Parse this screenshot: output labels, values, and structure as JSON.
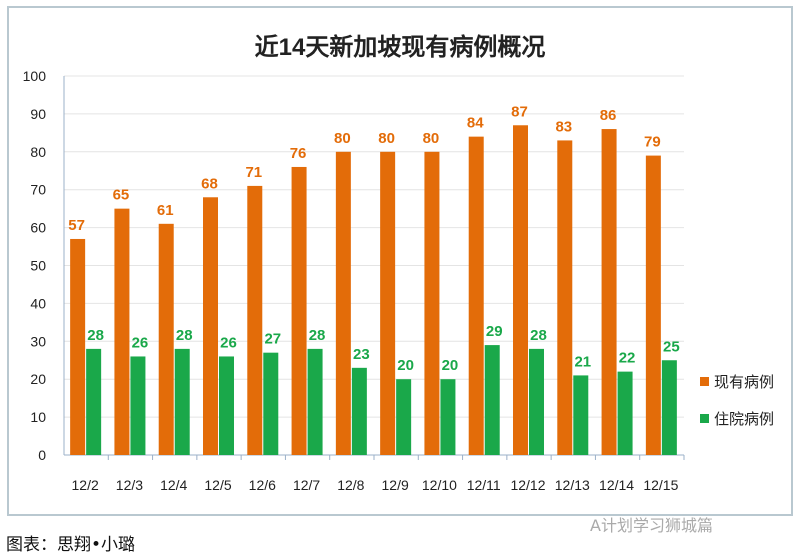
{
  "chart_data": {
    "type": "bar",
    "title": "近14天新加坡现有病例概况",
    "categories": [
      "12/2",
      "12/3",
      "12/4",
      "12/5",
      "12/6",
      "12/7",
      "12/8",
      "12/9",
      "12/10",
      "12/11",
      "12/12",
      "12/13",
      "12/14",
      "12/15"
    ],
    "series": [
      {
        "name": "现有病例",
        "color": "#e36c09",
        "values": [
          57,
          65,
          61,
          68,
          71,
          76,
          80,
          80,
          80,
          84,
          87,
          83,
          86,
          79
        ]
      },
      {
        "name": "住院病例",
        "color": "#1aa84a",
        "values": [
          28,
          26,
          28,
          26,
          27,
          28,
          23,
          20,
          20,
          29,
          28,
          21,
          22,
          25
        ]
      }
    ],
    "ylim": [
      0,
      100
    ],
    "yticks": [
      0,
      10,
      20,
      30,
      40,
      50,
      60,
      70,
      80,
      90,
      100
    ],
    "grid": true,
    "legend": "right",
    "xlabel": "",
    "ylabel": ""
  },
  "caption": "图表：思翔•小璐",
  "watermark": "A计划学习狮城篇"
}
